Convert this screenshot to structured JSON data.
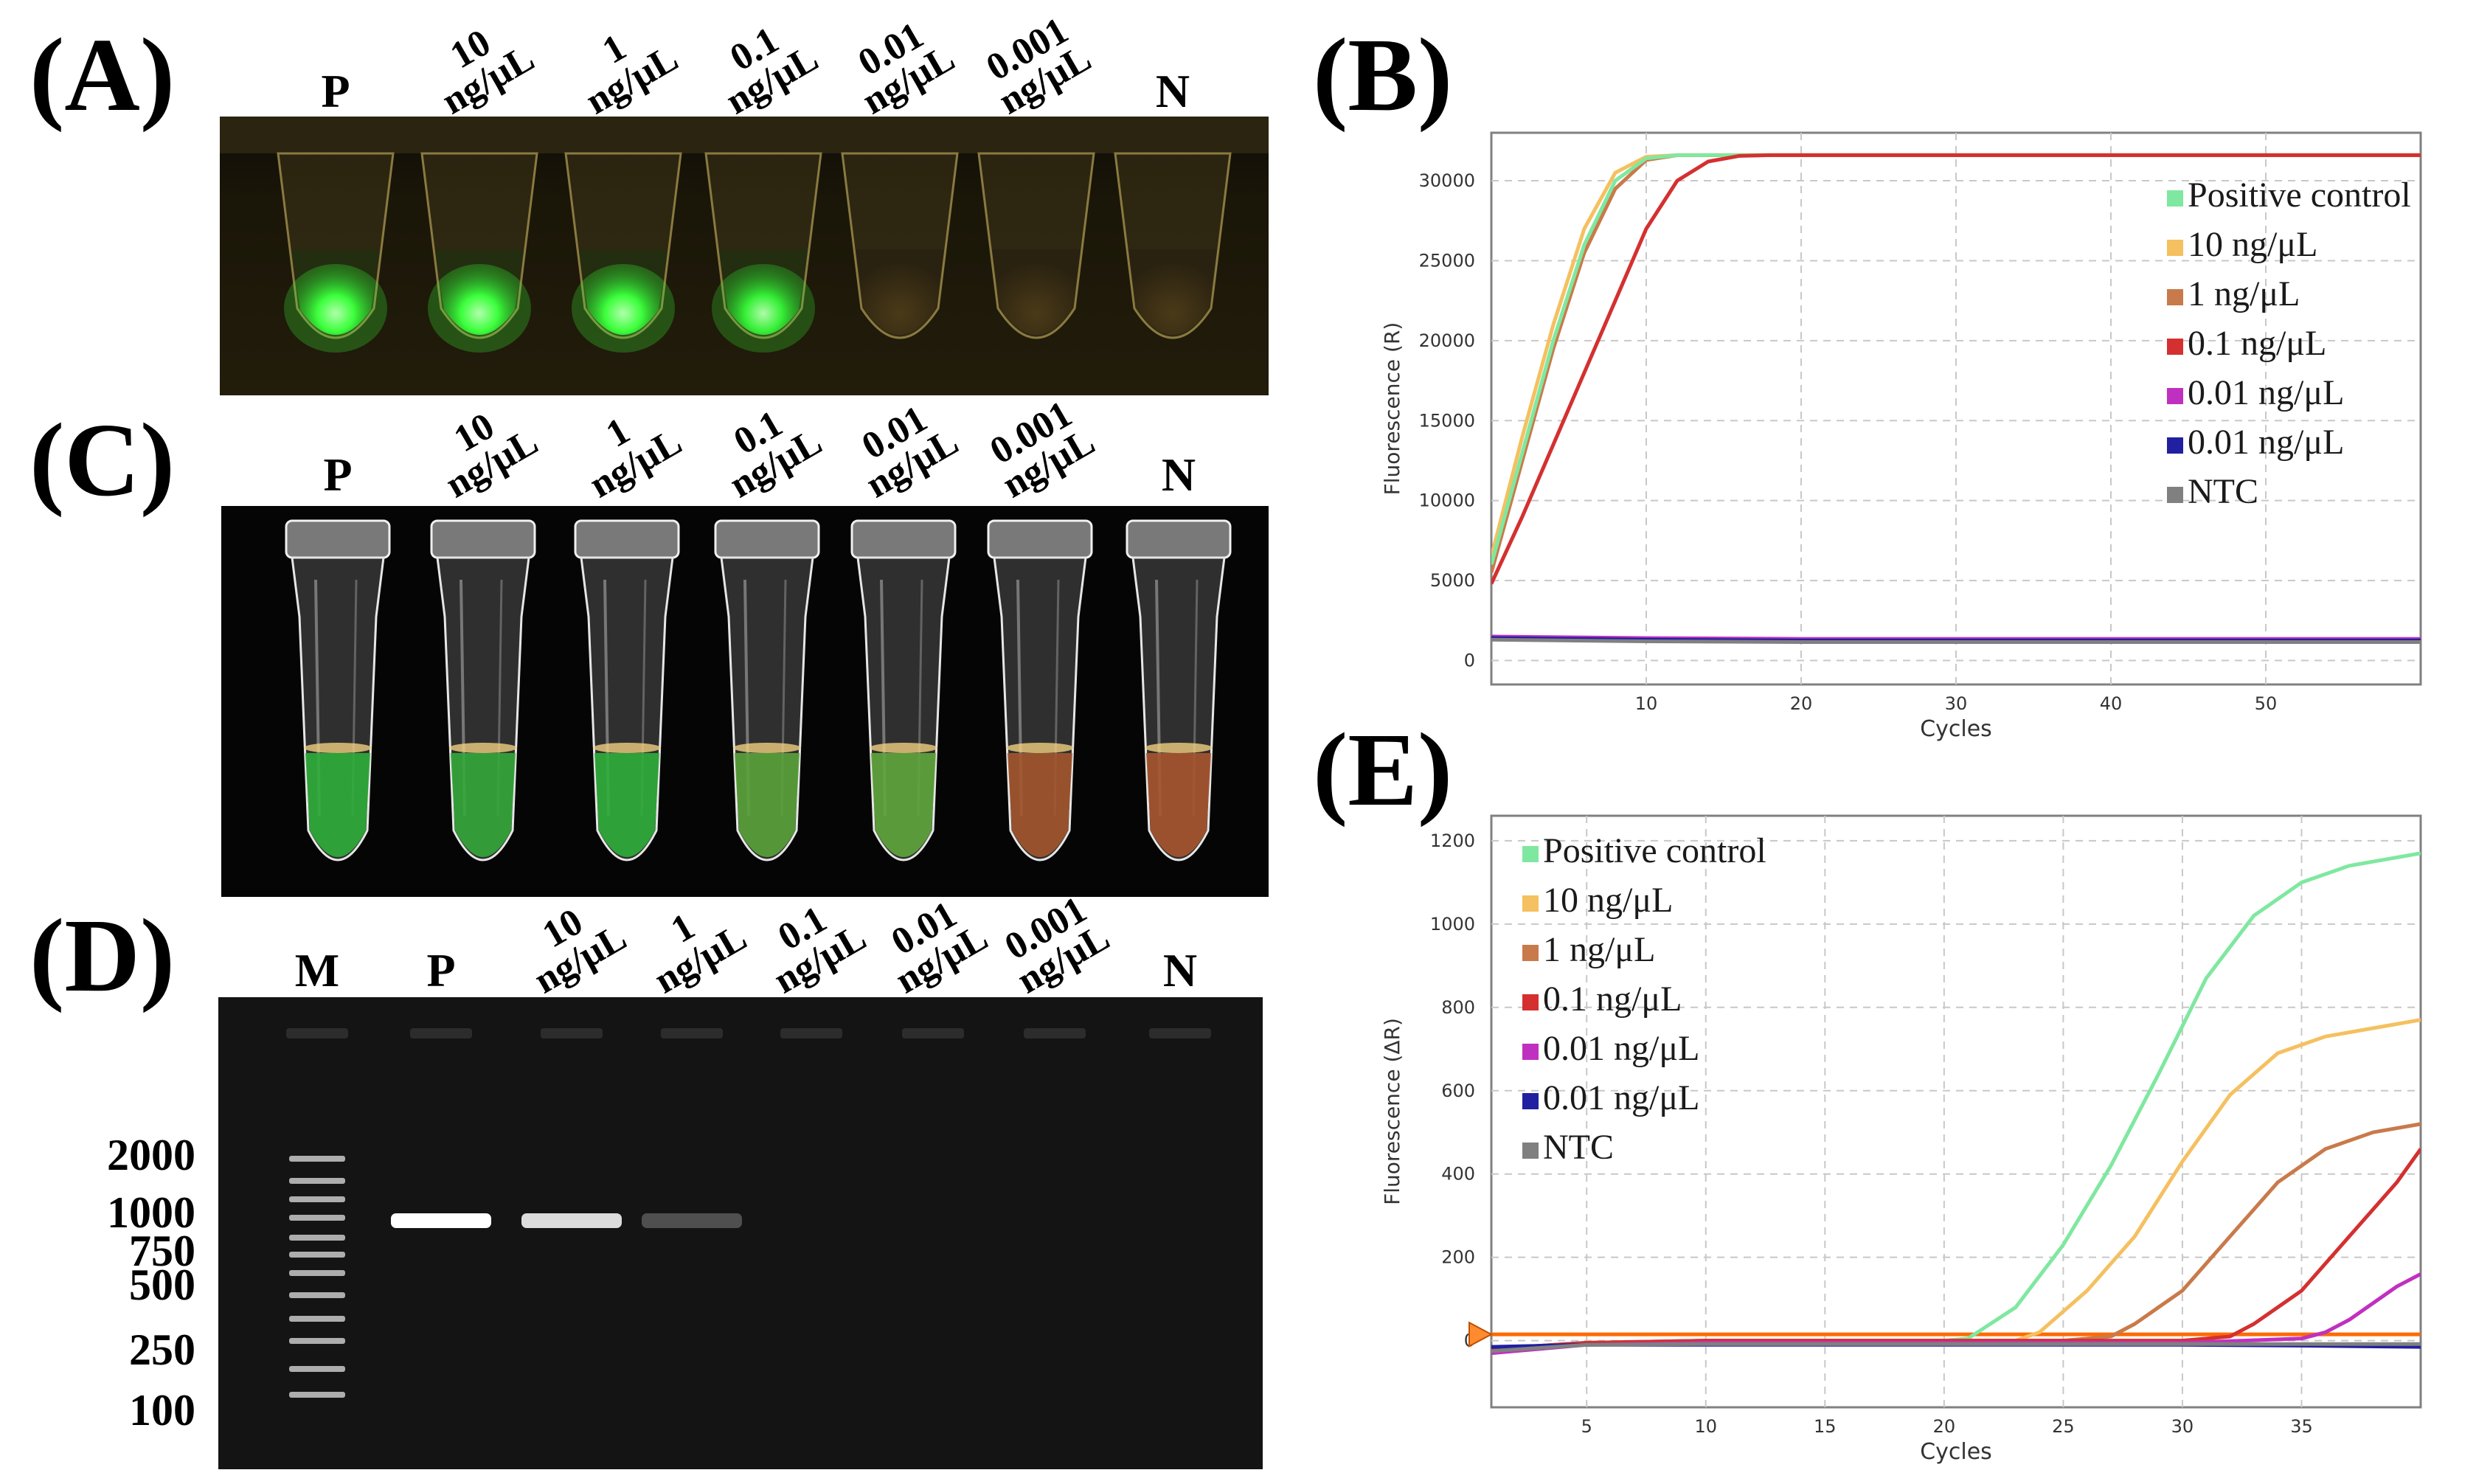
{
  "panels": {
    "A": {
      "label": "(A)",
      "lanes": [
        {
          "l1": "P",
          "l2": ""
        },
        {
          "l1": "10",
          "l2": "ng/μL"
        },
        {
          "l1": "1",
          "l2": "ng/μL"
        },
        {
          "l1": "0.1",
          "l2": "ng/μL"
        },
        {
          "l1": "0.01",
          "l2": "ng/μL"
        },
        {
          "l1": "0.001",
          "l2": "ng/μL"
        },
        {
          "l1": "N",
          "l2": ""
        }
      ],
      "tube_glow": [
        "#3cff3c",
        "#3cff3c",
        "#3cff3c",
        "#36f036",
        "none",
        "none",
        "none"
      ]
    },
    "B": {
      "label": "(B)"
    },
    "C": {
      "label": "(C)",
      "lanes": [
        {
          "l1": "P",
          "l2": ""
        },
        {
          "l1": "10",
          "l2": "ng/μL"
        },
        {
          "l1": "1",
          "l2": "ng/μL"
        },
        {
          "l1": "0.1",
          "l2": "ng/μL"
        },
        {
          "l1": "0.01",
          "l2": "ng/μL"
        },
        {
          "l1": "0.001",
          "l2": "ng/μL"
        },
        {
          "l1": "N",
          "l2": ""
        }
      ],
      "tube_colors": [
        "#2fae3a",
        "#34a93a",
        "#2fae3a",
        "#5aa33a",
        "#5fa63c",
        "#a3562e",
        "#a9552f"
      ]
    },
    "D": {
      "label": "(D)",
      "lanes": [
        {
          "l1": "M",
          "l2": ""
        },
        {
          "l1": "P",
          "l2": ""
        },
        {
          "l1": "10",
          "l2": "ng/μL"
        },
        {
          "l1": "1",
          "l2": "ng/μL"
        },
        {
          "l1": "0.1",
          "l2": "ng/μL"
        },
        {
          "l1": "0.01",
          "l2": "ng/μL"
        },
        {
          "l1": "0.001",
          "l2": "ng/μL"
        },
        {
          "l1": "N",
          "l2": ""
        }
      ],
      "ladder_sizes": [
        "2000",
        "1000",
        "750",
        "500",
        "250",
        "100"
      ],
      "band_intensity": [
        1.0,
        0.85,
        0.25,
        0,
        0,
        0,
        0
      ]
    },
    "E": {
      "label": "(E)"
    }
  },
  "chart_data": [
    {
      "type": "line",
      "panel": "B",
      "xlabel": "Cycles",
      "ylabel": "Fluorescence (R)",
      "xlim": [
        0,
        60
      ],
      "ylim": [
        -1500,
        33000
      ],
      "xticks": [
        10,
        20,
        30,
        40,
        50
      ],
      "yticks": [
        0,
        5000,
        10000,
        15000,
        20000,
        25000,
        30000
      ],
      "legend": [
        {
          "name": "Positive control",
          "color": "#7fe8a0"
        },
        {
          "name": "10 ng/μL",
          "color": "#f5c060"
        },
        {
          "name": "1 ng/μL",
          "color": "#c97a4a"
        },
        {
          "name": "0.1 ng/μL",
          "color": "#d43030"
        },
        {
          "name": "0.01 ng/μL",
          "color": "#c030c0"
        },
        {
          "name": "0.01 ng/μL",
          "color": "#2020a0"
        },
        {
          "name": "NTC",
          "color": "#808080"
        }
      ],
      "series": [
        {
          "name": "10 ng/μL",
          "color": "#f5c060",
          "x": [
            0,
            2,
            4,
            6,
            8,
            10,
            12,
            14,
            16,
            60
          ],
          "y": [
            6500,
            14000,
            21000,
            27000,
            30500,
            31500,
            31600,
            31600,
            31600,
            31600
          ]
        },
        {
          "name": "1 ng/μL",
          "color": "#c97a4a",
          "x": [
            0,
            2,
            4,
            6,
            8,
            10,
            12,
            14,
            16,
            60
          ],
          "y": [
            5500,
            12500,
            19500,
            25500,
            29500,
            31300,
            31600,
            31600,
            31600,
            31600
          ]
        },
        {
          "name": "Positive control",
          "color": "#7fe8a0",
          "x": [
            0,
            2,
            4,
            6,
            8,
            10,
            12,
            14,
            16,
            60
          ],
          "y": [
            6000,
            13000,
            20000,
            26000,
            30000,
            31400,
            31600,
            31600,
            31600,
            31600
          ]
        },
        {
          "name": "0.1 ng/μL",
          "color": "#d43030",
          "x": [
            0,
            2,
            4,
            6,
            8,
            10,
            12,
            14,
            16,
            18,
            60
          ],
          "y": [
            4800,
            9000,
            13500,
            18000,
            22500,
            27000,
            30000,
            31200,
            31550,
            31600,
            31600
          ]
        },
        {
          "name": "0.01 ng/μL",
          "color": "#c030c0",
          "x": [
            0,
            10,
            20,
            30,
            40,
            50,
            60
          ],
          "y": [
            1500,
            1400,
            1350,
            1350,
            1350,
            1350,
            1350
          ]
        },
        {
          "name": "0.01 ng/μL",
          "color": "#2020a0",
          "x": [
            0,
            10,
            20,
            30,
            40,
            50,
            60
          ],
          "y": [
            1400,
            1300,
            1250,
            1250,
            1250,
            1250,
            1250
          ]
        },
        {
          "name": "NTC",
          "color": "#808080",
          "x": [
            0,
            10,
            20,
            30,
            40,
            50,
            60
          ],
          "y": [
            1300,
            1200,
            1150,
            1150,
            1150,
            1150,
            1150
          ]
        }
      ]
    },
    {
      "type": "line",
      "panel": "E",
      "xlabel": "Cycles",
      "ylabel": "Fluorescence (ΔR)",
      "xlim": [
        1,
        40
      ],
      "ylim": [
        -160,
        1260
      ],
      "xticks": [
        5,
        10,
        15,
        20,
        25,
        30,
        35
      ],
      "yticks": [
        0,
        200,
        400,
        600,
        800,
        1000,
        1200
      ],
      "threshold": 15,
      "legend": [
        {
          "name": "Positive control",
          "color": "#7fe8a0"
        },
        {
          "name": "10 ng/μL",
          "color": "#f5c060"
        },
        {
          "name": "1 ng/μL",
          "color": "#c97a4a"
        },
        {
          "name": "0.1 ng/μL",
          "color": "#d43030"
        },
        {
          "name": "0.01 ng/μL",
          "color": "#c030c0"
        },
        {
          "name": "0.01 ng/μL",
          "color": "#2020a0"
        },
        {
          "name": "NTC",
          "color": "#808080"
        }
      ],
      "series": [
        {
          "name": "Positive control",
          "color": "#7fe8a0",
          "x": [
            1,
            5,
            10,
            15,
            20,
            21,
            23,
            25,
            27,
            29,
            31,
            33,
            35,
            37,
            40
          ],
          "y": [
            -20,
            -5,
            0,
            0,
            0,
            5,
            80,
            230,
            420,
            640,
            870,
            1020,
            1100,
            1140,
            1170
          ]
        },
        {
          "name": "10 ng/μL",
          "color": "#f5c060",
          "x": [
            1,
            5,
            10,
            15,
            20,
            23,
            24,
            26,
            28,
            30,
            32,
            34,
            36,
            38,
            40
          ],
          "y": [
            -20,
            -5,
            0,
            0,
            0,
            0,
            20,
            120,
            250,
            430,
            590,
            690,
            730,
            750,
            770
          ]
        },
        {
          "name": "1 ng/μL",
          "color": "#c97a4a",
          "x": [
            1,
            5,
            10,
            15,
            20,
            25,
            27,
            28,
            30,
            32,
            34,
            36,
            38,
            40
          ],
          "y": [
            -20,
            -5,
            0,
            0,
            0,
            0,
            10,
            40,
            120,
            250,
            380,
            460,
            500,
            520
          ]
        },
        {
          "name": "0.1 ng/μL",
          "color": "#d43030",
          "x": [
            1,
            5,
            10,
            15,
            20,
            25,
            30,
            32,
            33,
            35,
            37,
            39,
            40
          ],
          "y": [
            -20,
            -5,
            0,
            0,
            0,
            0,
            0,
            10,
            40,
            120,
            250,
            380,
            460
          ]
        },
        {
          "name": "0.01 ng/μL",
          "color": "#c030c0",
          "x": [
            1,
            5,
            10,
            15,
            20,
            25,
            30,
            35,
            36,
            37,
            38,
            39,
            40
          ],
          "y": [
            -30,
            -10,
            -5,
            -5,
            -5,
            -5,
            -5,
            5,
            20,
            50,
            90,
            130,
            160
          ]
        },
        {
          "name": "0.01 ng/μL",
          "color": "#2020a0",
          "x": [
            1,
            5,
            10,
            15,
            20,
            25,
            30,
            35,
            40
          ],
          "y": [
            -15,
            -10,
            -10,
            -10,
            -10,
            -10,
            -10,
            -12,
            -15
          ]
        },
        {
          "name": "NTC",
          "color": "#808080",
          "x": [
            1,
            5,
            10,
            15,
            20,
            25,
            30,
            35,
            40
          ],
          "y": [
            -25,
            -10,
            -8,
            -8,
            -8,
            -8,
            -8,
            -8,
            -8
          ]
        }
      ]
    }
  ]
}
